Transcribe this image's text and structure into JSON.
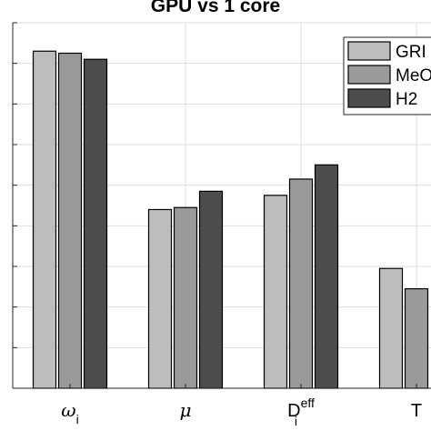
{
  "chart_data": {
    "type": "bar",
    "title": "GPU vs 1 core",
    "xlabel": "",
    "ylabel": "",
    "categories": [
      "ω_i",
      "μ",
      "D_i^eff",
      "T"
    ],
    "category_parts": [
      {
        "base": "ω",
        "sub": "i",
        "sup": ""
      },
      {
        "base": "μ",
        "sub": "",
        "sup": ""
      },
      {
        "base": "D",
        "sub": "i",
        "sup": "eff"
      },
      {
        "base": "T",
        "sub": "",
        "sup": ""
      }
    ],
    "ylim": [
      0,
      9
    ],
    "grid": true,
    "legend_position": "top-right",
    "series": [
      {
        "name": "GRI",
        "color": "#bdbdbd",
        "values": [
          8.3,
          4.4,
          4.75,
          2.95
        ]
      },
      {
        "name": "MeO",
        "color": "#9a9a9a",
        "values": [
          8.25,
          4.45,
          5.15,
          2.45
        ]
      },
      {
        "name": "H2",
        "color": "#4d4d4d",
        "values": [
          8.1,
          4.85,
          5.5,
          null
        ]
      }
    ]
  }
}
